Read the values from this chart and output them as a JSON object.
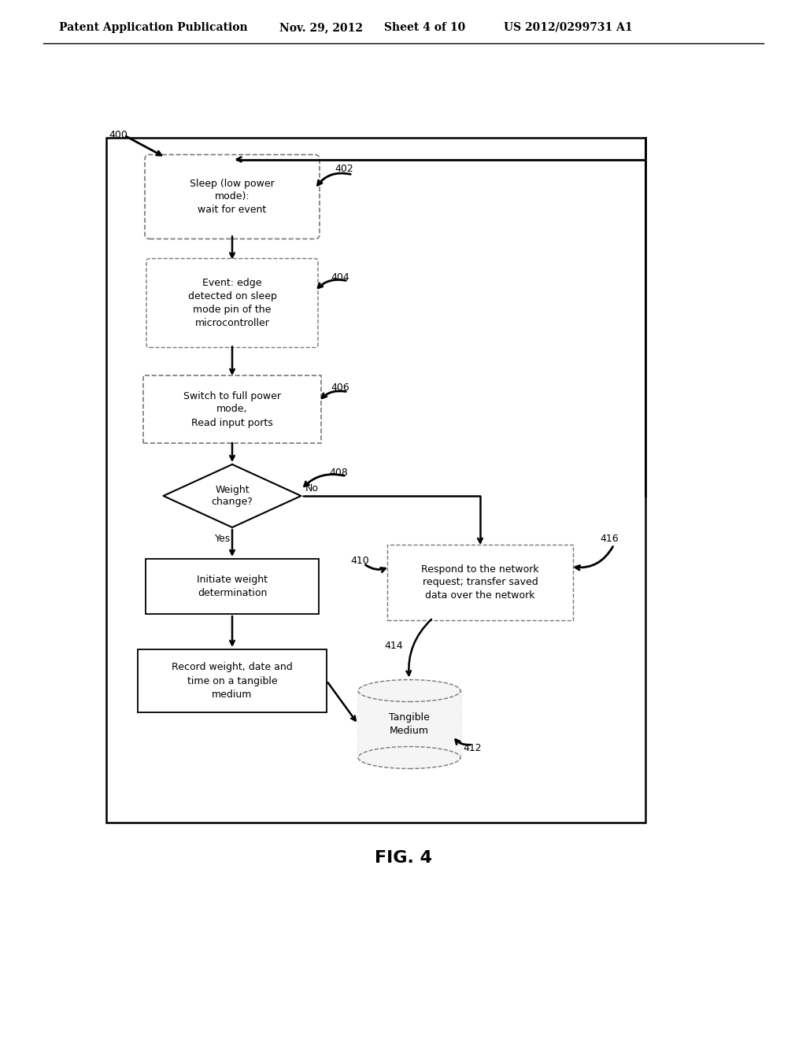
{
  "title_line1": "Patent Application Publication",
  "title_date": "Nov. 29, 2012",
  "title_sheet": "Sheet 4 of 10",
  "title_patent": "US 2012/0299731 A1",
  "fig_label": "FIG. 4",
  "label_400": "400",
  "label_402": "402",
  "label_404": "404",
  "label_406": "406",
  "label_408": "408",
  "label_410": "410",
  "label_412": "412",
  "label_414": "414",
  "label_416": "416",
  "box1_text": "Sleep (low power\nmode):\nwait for event",
  "box2_text": "Event: edge\ndetected on sleep\nmode pin of the\nmicrocontroller",
  "box3_text": "Switch to full power\nmode,\nRead input ports",
  "diamond_text": "Weight\nchange?",
  "box5_text": "Initiate weight\ndetermination",
  "box6_text": "Record weight, date and\ntime on a tangible\nmedium",
  "box7_text": "Respond to the network\nrequest; transfer saved\ndata over the network",
  "cylinder_text": "Tangible\nMedium",
  "yes_label": "Yes",
  "no_label": "No",
  "bg_color": "#ffffff",
  "box_edge_color": "#000000",
  "box_fill_color": "#ffffff",
  "text_color": "#000000",
  "font_size_main": 9,
  "font_size_header": 10,
  "font_size_fig": 16
}
